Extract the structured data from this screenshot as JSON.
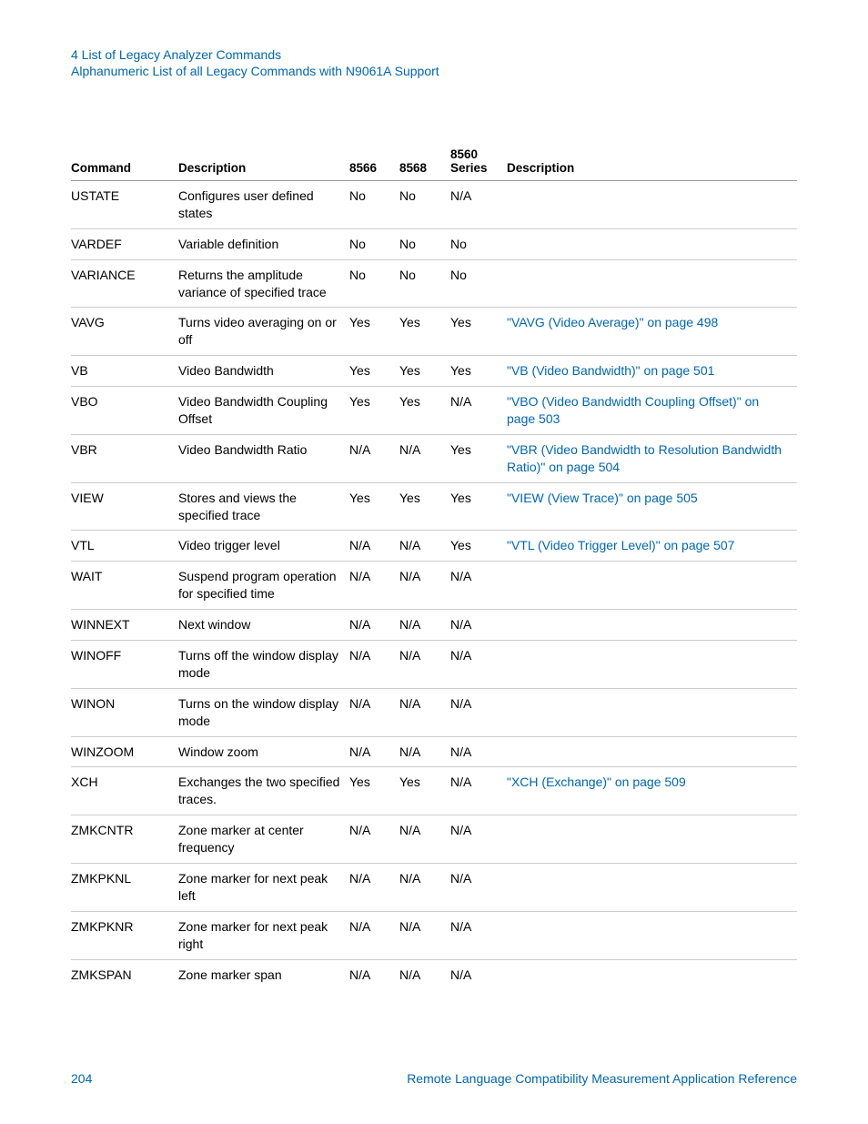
{
  "colors": {
    "link": "#0066b3",
    "text": "#000000",
    "border_header": "#999999",
    "border_row": "#cccccc",
    "background": "#ffffff"
  },
  "header": {
    "line1": "4  List of Legacy Analyzer Commands",
    "line2": "Alphanumeric List of all Legacy Commands with N9061A Support"
  },
  "table": {
    "columns": {
      "command": "Command",
      "description1": "Description",
      "c8566": "8566",
      "c8568": "8568",
      "c8560_l1": "8560",
      "c8560_l2": "Series",
      "description2": "Description"
    },
    "rows": [
      {
        "command": "USTATE",
        "desc1": "Configures user defined states",
        "c8566": "No",
        "c8568": "No",
        "c8560": "N/A",
        "desc2": "",
        "link": false
      },
      {
        "command": "VARDEF",
        "desc1": "Variable definition",
        "c8566": "No",
        "c8568": "No",
        "c8560": "No",
        "desc2": "",
        "link": false
      },
      {
        "command": "VARIANCE",
        "desc1": "Returns the amplitude variance of specified trace",
        "c8566": "No",
        "c8568": "No",
        "c8560": "No",
        "desc2": "",
        "link": false
      },
      {
        "command": "VAVG",
        "desc1": "Turns video averaging on or off",
        "c8566": "Yes",
        "c8568": "Yes",
        "c8560": "Yes",
        "desc2": "\"VAVG (Video Average)\" on page 498",
        "link": true
      },
      {
        "command": "VB",
        "desc1": "Video Bandwidth",
        "c8566": "Yes",
        "c8568": "Yes",
        "c8560": "Yes",
        "desc2": "\"VB (Video Bandwidth)\" on page 501",
        "link": true
      },
      {
        "command": "VBO",
        "desc1": "Video Bandwidth Coupling Offset",
        "c8566": "Yes",
        "c8568": "Yes",
        "c8560": "N/A",
        "desc2": "\"VBO (Video Bandwidth Coupling Offset)\" on page 503",
        "link": true
      },
      {
        "command": "VBR",
        "desc1": "Video Bandwidth Ratio",
        "c8566": "N/A",
        "c8568": "N/A",
        "c8560": "Yes",
        "desc2": "\"VBR (Video Bandwidth to Resolution Bandwidth Ratio)\" on page 504",
        "link": true
      },
      {
        "command": "VIEW",
        "desc1": "Stores and views the specified trace",
        "c8566": "Yes",
        "c8568": "Yes",
        "c8560": "Yes",
        "desc2": "\"VIEW (View Trace)\" on page 505",
        "link": true
      },
      {
        "command": "VTL",
        "desc1": "Video trigger level",
        "c8566": "N/A",
        "c8568": "N/A",
        "c8560": "Yes",
        "desc2": "\"VTL (Video Trigger Level)\" on page 507",
        "link": true
      },
      {
        "command": "WAIT",
        "desc1": "Suspend program operation for specified time",
        "c8566": "N/A",
        "c8568": "N/A",
        "c8560": "N/A",
        "desc2": "",
        "link": false
      },
      {
        "command": "WINNEXT",
        "desc1": "Next window",
        "c8566": "N/A",
        "c8568": "N/A",
        "c8560": "N/A",
        "desc2": "",
        "link": false
      },
      {
        "command": "WINOFF",
        "desc1": "Turns off the window display mode",
        "c8566": "N/A",
        "c8568": "N/A",
        "c8560": "N/A",
        "desc2": "",
        "link": false
      },
      {
        "command": "WINON",
        "desc1": "Turns on the window display mode",
        "c8566": "N/A",
        "c8568": "N/A",
        "c8560": "N/A",
        "desc2": "",
        "link": false
      },
      {
        "command": "WINZOOM",
        "desc1": "Window zoom",
        "c8566": "N/A",
        "c8568": "N/A",
        "c8560": "N/A",
        "desc2": "",
        "link": false
      },
      {
        "command": "XCH",
        "desc1": "Exchanges the two specified traces.",
        "c8566": "Yes",
        "c8568": "Yes",
        "c8560": "N/A",
        "desc2": "\"XCH (Exchange)\" on page 509",
        "link": true
      },
      {
        "command": "ZMKCNTR",
        "desc1": "Zone marker at center frequency",
        "c8566": "N/A",
        "c8568": "N/A",
        "c8560": "N/A",
        "desc2": "",
        "link": false
      },
      {
        "command": "ZMKPKNL",
        "desc1": "Zone marker for next peak left",
        "c8566": "N/A",
        "c8568": "N/A",
        "c8560": "N/A",
        "desc2": "",
        "link": false
      },
      {
        "command": "ZMKPKNR",
        "desc1": "Zone marker for next peak right",
        "c8566": "N/A",
        "c8568": "N/A",
        "c8560": "N/A",
        "desc2": "",
        "link": false
      },
      {
        "command": "ZMKSPAN",
        "desc1": "Zone marker span",
        "c8566": "N/A",
        "c8568": "N/A",
        "c8560": "N/A",
        "desc2": "",
        "link": false
      }
    ]
  },
  "footer": {
    "page": "204",
    "title": "Remote Language Compatibility Measurement Application Reference"
  }
}
